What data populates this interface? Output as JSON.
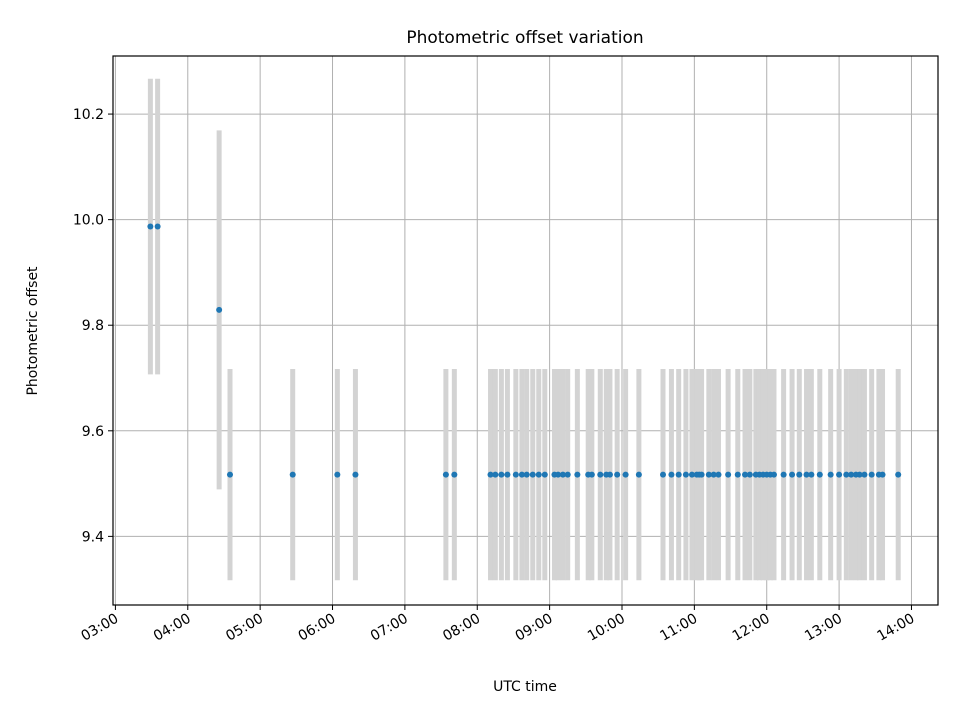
{
  "chart_data": {
    "type": "scatter",
    "title": "Photometric offset variation",
    "xlabel": "UTC time",
    "ylabel": "Photometric offset",
    "x_ticks": [
      "03:00",
      "04:00",
      "05:00",
      "06:00",
      "07:00",
      "08:00",
      "09:00",
      "10:00",
      "11:00",
      "12:00",
      "13:00",
      "14:00"
    ],
    "y_ticks": [
      9.4,
      9.6,
      9.8,
      10.0,
      10.2
    ],
    "xlim": [
      "02:58",
      "14:22"
    ],
    "ylim": [
      9.27,
      10.31
    ],
    "grid": true,
    "colors": {
      "point": "#1f77b4",
      "errorbar": "#d3d3d3",
      "grid": "#b0b0b0"
    },
    "series": [
      {
        "x": [
          "03:29",
          "03:35",
          "04:26",
          "04:35",
          "05:27",
          "06:04",
          "06:19",
          "07:34",
          "07:41",
          "08:11",
          "08:15",
          "08:20",
          "08:25",
          "08:32",
          "08:37",
          "08:41",
          "08:46",
          "08:51",
          "08:56",
          "09:04",
          "09:07",
          "09:11",
          "09:15",
          "09:23",
          "09:32",
          "09:35",
          "09:42",
          "09:47",
          "09:50",
          "09:56",
          "10:03",
          "10:14",
          "10:34",
          "10:41",
          "10:47",
          "10:53",
          "10:58",
          "11:02",
          "11:04",
          "11:06",
          "11:12",
          "11:16",
          "11:20",
          "11:28",
          "11:36",
          "11:42",
          "11:46",
          "11:51",
          "11:54",
          "11:57",
          "12:00",
          "12:03",
          "12:06",
          "12:14",
          "12:21",
          "12:27",
          "12:33",
          "12:37",
          "12:44",
          "12:53",
          "13:00",
          "13:06",
          "13:10",
          "13:14",
          "13:17",
          "13:21",
          "13:27",
          "13:33",
          "13:36",
          "13:49"
        ],
        "y": [
          9.987,
          9.987,
          9.829,
          9.517,
          9.517,
          9.517,
          9.517,
          9.517,
          9.517,
          9.517,
          9.517,
          9.517,
          9.517,
          9.517,
          9.517,
          9.517,
          9.517,
          9.517,
          9.517,
          9.517,
          9.517,
          9.517,
          9.517,
          9.517,
          9.517,
          9.517,
          9.517,
          9.517,
          9.517,
          9.517,
          9.517,
          9.517,
          9.517,
          9.517,
          9.517,
          9.517,
          9.517,
          9.517,
          9.517,
          9.517,
          9.517,
          9.517,
          9.517,
          9.517,
          9.517,
          9.517,
          9.517,
          9.517,
          9.517,
          9.517,
          9.517,
          9.517,
          9.517,
          9.517,
          9.517,
          9.517,
          9.517,
          9.517,
          9.517,
          9.517,
          9.517,
          9.517,
          9.517,
          9.517,
          9.517,
          9.517,
          9.517,
          9.517,
          9.517,
          9.517
        ],
        "yerr": [
          0.28,
          0.28,
          0.34,
          0.2,
          0.2,
          0.2,
          0.2,
          0.2,
          0.2,
          0.2,
          0.2,
          0.2,
          0.2,
          0.2,
          0.2,
          0.2,
          0.2,
          0.2,
          0.2,
          0.2,
          0.2,
          0.2,
          0.2,
          0.2,
          0.2,
          0.2,
          0.2,
          0.2,
          0.2,
          0.2,
          0.2,
          0.2,
          0.2,
          0.2,
          0.2,
          0.2,
          0.2,
          0.2,
          0.2,
          0.2,
          0.2,
          0.2,
          0.2,
          0.2,
          0.2,
          0.2,
          0.2,
          0.2,
          0.2,
          0.2,
          0.2,
          0.2,
          0.2,
          0.2,
          0.2,
          0.2,
          0.2,
          0.2,
          0.2,
          0.2,
          0.2,
          0.2,
          0.2,
          0.2,
          0.2,
          0.2,
          0.2,
          0.2,
          0.2,
          0.2
        ]
      }
    ]
  }
}
